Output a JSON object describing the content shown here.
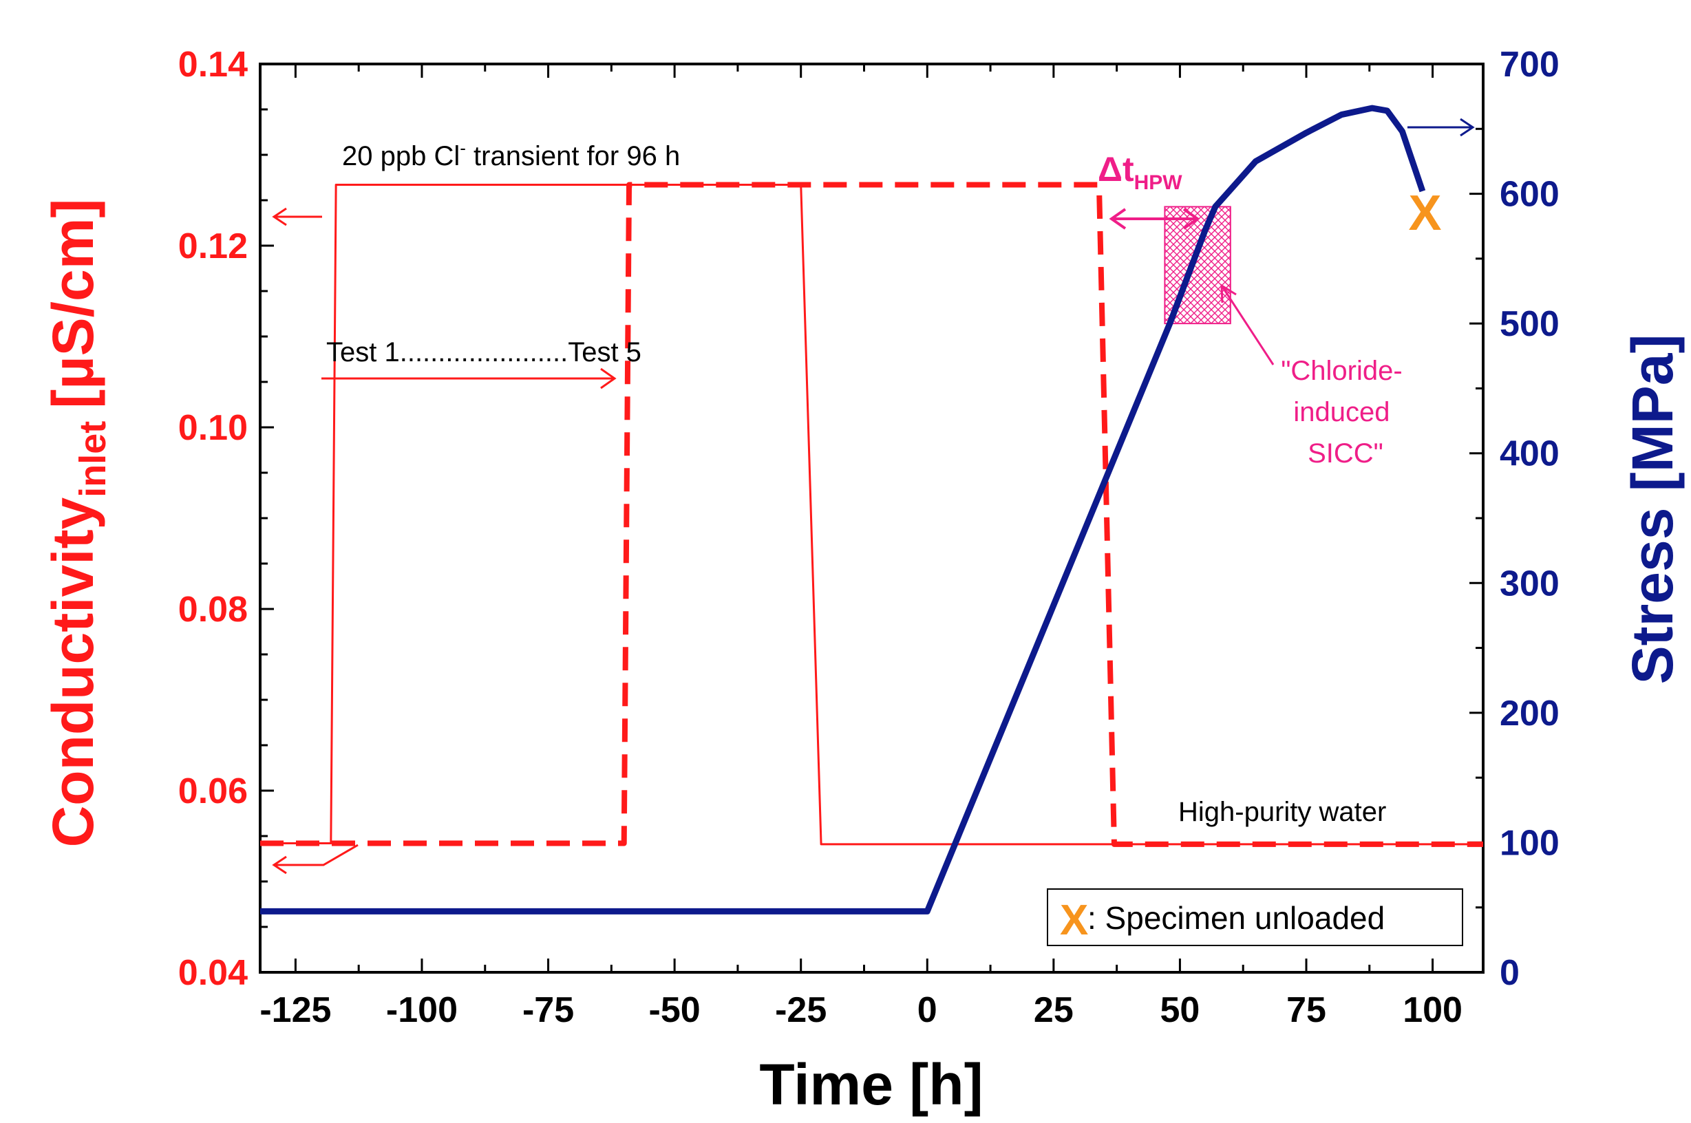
{
  "chart_data": {
    "type": "line",
    "x_axis": {
      "label": "Time [h]",
      "range": [
        -132,
        110
      ],
      "ticks": [
        -125,
        -100,
        -75,
        -50,
        -25,
        0,
        25,
        50,
        75,
        100
      ],
      "tick_labels": [
        "-125",
        "-100",
        "-75",
        "-50",
        "-25",
        "0",
        "25",
        "50",
        "75",
        "100"
      ],
      "color": "#000000"
    },
    "y_left": {
      "label_main": "Conductivity",
      "label_sub": "inlet",
      "label_unit": "[µS/cm]",
      "range": [
        0.04,
        0.14
      ],
      "ticks": [
        0.04,
        0.06,
        0.08,
        0.1,
        0.12,
        0.14
      ],
      "tick_labels": [
        "0.04",
        "0.06",
        "0.08",
        "0.10",
        "0.12",
        "0.14"
      ],
      "color": "#ff1a1a"
    },
    "y_right": {
      "label": "Stress [MPa]",
      "range": [
        0,
        700
      ],
      "ticks": [
        0,
        100,
        200,
        300,
        400,
        500,
        600,
        700
      ],
      "tick_labels": [
        "0",
        "100",
        "200",
        "300",
        "400",
        "500",
        "600",
        "700"
      ],
      "color": "#0d1a8c"
    },
    "series": [
      {
        "name": "Conductivity Test 1",
        "axis": "left",
        "style": "solid",
        "color": "#ff1a1a",
        "x": [
          -132,
          -118,
          -117,
          -25,
          -21,
          110
        ],
        "y": [
          0.0542,
          0.0542,
          0.1267,
          0.1267,
          0.0541,
          0.0541
        ]
      },
      {
        "name": "Conductivity Test 5",
        "axis": "left",
        "style": "dashed",
        "color": "#ff1a1a",
        "x": [
          -132,
          -60,
          -59,
          34,
          37,
          110
        ],
        "y": [
          0.0542,
          0.0542,
          0.1267,
          0.1267,
          0.0541,
          0.0541
        ]
      },
      {
        "name": "Stress",
        "axis": "right",
        "style": "solid",
        "color": "#0d1a8c",
        "x": [
          -132,
          0,
          48,
          55,
          57,
          65,
          75,
          82,
          88,
          91,
          94,
          96,
          98
        ],
        "y": [
          47,
          47,
          500,
          572,
          590,
          625,
          647,
          661,
          666,
          664,
          648,
          625,
          602
        ]
      }
    ],
    "annotations": {
      "transient_prefix": "20 ppb Cl",
      "transient_sup": "-",
      "transient_suffix": " transient for 96 h",
      "test_range": "Test 1......................Test 5",
      "delta_main": "Δt",
      "delta_sub": "HPW",
      "sicc_line1": "\"Chloride-",
      "sicc_line2": "induced",
      "sicc_line3": "SICC\"",
      "water_label": "High-purity water",
      "unload_marker": "X",
      "legend_marker": "X",
      "legend_text": ": Specimen unloaded",
      "sicc_box_x": [
        47,
        60
      ],
      "sicc_box_y_mpa": [
        500,
        590
      ],
      "unload_point": {
        "x": 98.5,
        "y_mpa": 585
      }
    },
    "colors": {
      "conductivity": "#ff1a1a",
      "stress": "#0d1a8c",
      "annotation_pink": "#ef1e88",
      "marker_orange": "#f7941d",
      "frame": "#000000"
    }
  }
}
